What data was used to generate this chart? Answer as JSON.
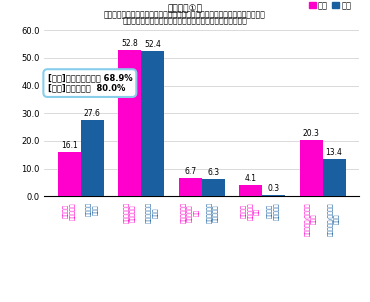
{
  "title_line1": "【グラフ①】",
  "title_line2": "女性：あなたは将来、配偶者（夫）に育児休暇を取得しほしいと思いますか。",
  "title_line3": "男性：あなたは将来、育児休暇を取得したいと思いますか。",
  "categories_female": [
    "必ず取得\nしてほしい",
    "できれば取得\nしてほしい",
    "できれば取得\nしてほしく\nない",
    "絶対取得\nしてほしく\nない",
    "わからない/あてはま\nらない"
  ],
  "categories_male": [
    "必ず取得\nしたい",
    "できれば取得\nしたい",
    "できれば取得\nしたくない",
    "絶対取得\nしたくない",
    "わからない/あてはま\nらない"
  ],
  "female_values": [
    16.1,
    52.8,
    6.7,
    4.1,
    20.3
  ],
  "male_values": [
    27.6,
    52.4,
    6.3,
    0.3,
    13.4
  ],
  "female_color": "#FF00CC",
  "male_color": "#1A5FA0",
  "female_label": "女性",
  "male_label": "男性",
  "ylim": [
    0,
    60
  ],
  "yticks": [
    0.0,
    10.0,
    20.0,
    30.0,
    40.0,
    50.0,
    60.0
  ],
  "annotation_text": "[女性]取得してほしい 68.9%\n[男性]取得したい  80.0%",
  "bg_color": "#FFFFFF",
  "grid_color": "#CCCCCC"
}
